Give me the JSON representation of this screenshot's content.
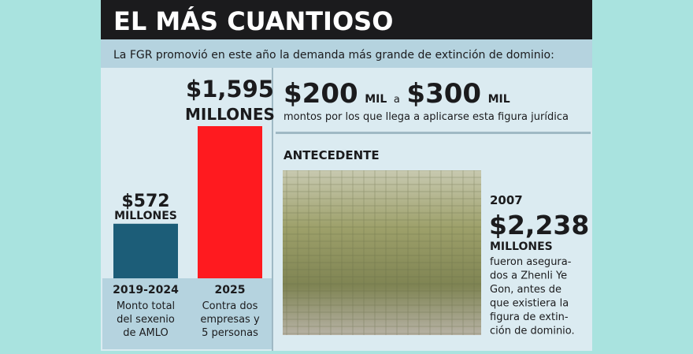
{
  "header": {
    "title": "EL MÁS CUANTIOSO",
    "subtitle": "La FGR promovió en este año la demanda más grande de extinción de dominio:"
  },
  "chart_data": {
    "type": "bar",
    "categories": [
      "2019-2024",
      "2025"
    ],
    "values": [
      572,
      1595
    ],
    "value_labels": [
      "$572",
      "$1,595"
    ],
    "unit_label": "MILLONES",
    "colors": [
      "#1c5d78",
      "#ff1a1f"
    ],
    "category_notes": [
      [
        "Monto total",
        "del sexenio",
        "de AMLO"
      ],
      [
        "Contra dos",
        "empresas y",
        "5 personas"
      ]
    ]
  },
  "range": {
    "low": "$200",
    "low_unit": "MIL",
    "joiner": "a",
    "high": "$300",
    "high_unit": "MIL",
    "caption": "montos por los que llega a aplicarse esta figura jurídica"
  },
  "background": {
    "title": "ANTECEDENTE",
    "year": "2007",
    "amount": "$2,238",
    "unit": "MILLONES",
    "lines": [
      "fueron asegura-",
      "dos a Zhenli Ye",
      "Gon, antes de",
      "que existiera la",
      "figura de extin-",
      "ción de dominio."
    ]
  }
}
